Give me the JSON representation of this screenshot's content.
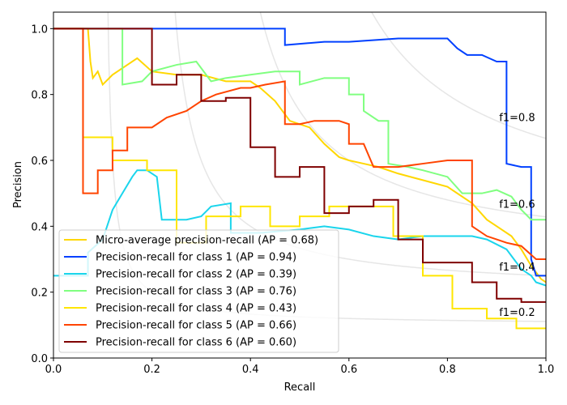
{
  "chart_data": {
    "type": "line",
    "title": "",
    "xlabel": "Recall",
    "ylabel": "Precision",
    "xlim": [
      0.0,
      1.0
    ],
    "ylim": [
      0.0,
      1.05
    ],
    "xticks": [
      0.0,
      0.2,
      0.4,
      0.6,
      0.8,
      1.0
    ],
    "yticks": [
      0.0,
      0.2,
      0.4,
      0.6,
      0.8,
      1.0
    ],
    "xtick_labels": [
      "0.0",
      "0.2",
      "0.4",
      "0.6",
      "0.8",
      "1.0"
    ],
    "ytick_labels": [
      "0.0",
      "0.2",
      "0.4",
      "0.6",
      "0.8",
      "1.0"
    ],
    "grid": false,
    "legend_position": "lower-left",
    "iso_f1": [
      {
        "f1": 0.2,
        "label": "f1=0.2",
        "label_at": [
          0.9,
          0.128
        ]
      },
      {
        "f1": 0.4,
        "label": "f1=0.4",
        "label_at": [
          0.9,
          0.266
        ]
      },
      {
        "f1": 0.6,
        "label": "f1=0.6",
        "label_at": [
          0.9,
          0.456
        ]
      },
      {
        "f1": 0.8,
        "label": "f1=0.8",
        "label_at": [
          0.9,
          0.719
        ]
      }
    ],
    "series": [
      {
        "name": "Micro-average precision-recall (AP = 0.68)",
        "color": "#ffd700",
        "points": [
          [
            0,
            1.0
          ],
          [
            0.07,
            1.0
          ],
          [
            0.075,
            0.9
          ],
          [
            0.08,
            0.85
          ],
          [
            0.09,
            0.87
          ],
          [
            0.1,
            0.83
          ],
          [
            0.12,
            0.86
          ],
          [
            0.15,
            0.89
          ],
          [
            0.17,
            0.91
          ],
          [
            0.2,
            0.87
          ],
          [
            0.25,
            0.86
          ],
          [
            0.3,
            0.86
          ],
          [
            0.35,
            0.84
          ],
          [
            0.4,
            0.84
          ],
          [
            0.42,
            0.82
          ],
          [
            0.45,
            0.78
          ],
          [
            0.48,
            0.72
          ],
          [
            0.5,
            0.71
          ],
          [
            0.52,
            0.7
          ],
          [
            0.55,
            0.65
          ],
          [
            0.58,
            0.61
          ],
          [
            0.6,
            0.6
          ],
          [
            0.63,
            0.59
          ],
          [
            0.66,
            0.58
          ],
          [
            0.7,
            0.56
          ],
          [
            0.75,
            0.54
          ],
          [
            0.8,
            0.52
          ],
          [
            0.85,
            0.47
          ],
          [
            0.88,
            0.42
          ],
          [
            0.9,
            0.4
          ],
          [
            0.93,
            0.37
          ],
          [
            0.95,
            0.33
          ],
          [
            0.97,
            0.28
          ],
          [
            0.99,
            0.24
          ],
          [
            1.0,
            0.23
          ]
        ]
      },
      {
        "name": "Precision-recall for class 1 (AP = 0.94)",
        "color": "#0040ff",
        "points": [
          [
            0,
            1.0
          ],
          [
            0.47,
            1.0
          ],
          [
            0.47,
            0.95
          ],
          [
            0.55,
            0.96
          ],
          [
            0.6,
            0.96
          ],
          [
            0.7,
            0.97
          ],
          [
            0.8,
            0.97
          ],
          [
            0.82,
            0.94
          ],
          [
            0.84,
            0.92
          ],
          [
            0.87,
            0.92
          ],
          [
            0.9,
            0.9
          ],
          [
            0.92,
            0.9
          ],
          [
            0.92,
            0.59
          ],
          [
            0.95,
            0.58
          ],
          [
            0.97,
            0.58
          ],
          [
            0.97,
            0.3
          ],
          [
            0.98,
            0.25
          ],
          [
            1.0,
            0.25
          ]
        ]
      },
      {
        "name": "Precision-recall for class 2 (AP = 0.39)",
        "color": "#1ad5ec",
        "points": [
          [
            0,
            0.25
          ],
          [
            0.07,
            0.25
          ],
          [
            0.07,
            0.32
          ],
          [
            0.1,
            0.36
          ],
          [
            0.12,
            0.45
          ],
          [
            0.14,
            0.5
          ],
          [
            0.16,
            0.55
          ],
          [
            0.17,
            0.57
          ],
          [
            0.19,
            0.57
          ],
          [
            0.21,
            0.55
          ],
          [
            0.22,
            0.42
          ],
          [
            0.27,
            0.42
          ],
          [
            0.3,
            0.43
          ],
          [
            0.32,
            0.46
          ],
          [
            0.36,
            0.47
          ],
          [
            0.36,
            0.38
          ],
          [
            0.42,
            0.38
          ],
          [
            0.5,
            0.39
          ],
          [
            0.55,
            0.4
          ],
          [
            0.6,
            0.39
          ],
          [
            0.65,
            0.37
          ],
          [
            0.7,
            0.36
          ],
          [
            0.75,
            0.37
          ],
          [
            0.85,
            0.37
          ],
          [
            0.88,
            0.36
          ],
          [
            0.92,
            0.33
          ],
          [
            0.95,
            0.27
          ],
          [
            0.97,
            0.25
          ],
          [
            0.98,
            0.23
          ],
          [
            1.0,
            0.22
          ]
        ]
      },
      {
        "name": "Precision-recall for class 3 (AP = 0.76)",
        "color": "#80ff80",
        "points": [
          [
            0,
            1.0
          ],
          [
            0.14,
            1.0
          ],
          [
            0.14,
            0.83
          ],
          [
            0.18,
            0.84
          ],
          [
            0.2,
            0.87
          ],
          [
            0.25,
            0.89
          ],
          [
            0.29,
            0.9
          ],
          [
            0.32,
            0.84
          ],
          [
            0.35,
            0.85
          ],
          [
            0.4,
            0.86
          ],
          [
            0.45,
            0.87
          ],
          [
            0.5,
            0.87
          ],
          [
            0.5,
            0.83
          ],
          [
            0.55,
            0.85
          ],
          [
            0.6,
            0.85
          ],
          [
            0.6,
            0.8
          ],
          [
            0.63,
            0.8
          ],
          [
            0.63,
            0.75
          ],
          [
            0.66,
            0.72
          ],
          [
            0.68,
            0.72
          ],
          [
            0.68,
            0.59
          ],
          [
            0.72,
            0.58
          ],
          [
            0.75,
            0.57
          ],
          [
            0.8,
            0.55
          ],
          [
            0.83,
            0.5
          ],
          [
            0.87,
            0.5
          ],
          [
            0.9,
            0.51
          ],
          [
            0.93,
            0.49
          ],
          [
            0.95,
            0.45
          ],
          [
            0.97,
            0.42
          ],
          [
            1.0,
            0.42
          ]
        ]
      },
      {
        "name": "Precision-recall for class 4 (AP = 0.43)",
        "color": "#ffe600",
        "points": [
          [
            0,
            1.0
          ],
          [
            0.06,
            1.0
          ],
          [
            0.06,
            0.67
          ],
          [
            0.12,
            0.67
          ],
          [
            0.12,
            0.6
          ],
          [
            0.19,
            0.6
          ],
          [
            0.19,
            0.57
          ],
          [
            0.25,
            0.57
          ],
          [
            0.25,
            0.35
          ],
          [
            0.31,
            0.35
          ],
          [
            0.31,
            0.43
          ],
          [
            0.38,
            0.43
          ],
          [
            0.38,
            0.46
          ],
          [
            0.44,
            0.46
          ],
          [
            0.44,
            0.4
          ],
          [
            0.5,
            0.4
          ],
          [
            0.5,
            0.43
          ],
          [
            0.56,
            0.43
          ],
          [
            0.56,
            0.46
          ],
          [
            0.69,
            0.46
          ],
          [
            0.69,
            0.37
          ],
          [
            0.75,
            0.37
          ],
          [
            0.75,
            0.25
          ],
          [
            0.81,
            0.25
          ],
          [
            0.81,
            0.15
          ],
          [
            0.88,
            0.15
          ],
          [
            0.88,
            0.12
          ],
          [
            0.94,
            0.12
          ],
          [
            0.94,
            0.09
          ],
          [
            1.0,
            0.09
          ]
        ]
      },
      {
        "name": "Precision-recall for class 5 (AP = 0.66)",
        "color": "#ff4400",
        "points": [
          [
            0,
            1.0
          ],
          [
            0.06,
            1.0
          ],
          [
            0.06,
            0.5
          ],
          [
            0.09,
            0.5
          ],
          [
            0.09,
            0.57
          ],
          [
            0.12,
            0.57
          ],
          [
            0.12,
            0.63
          ],
          [
            0.15,
            0.63
          ],
          [
            0.15,
            0.7
          ],
          [
            0.2,
            0.7
          ],
          [
            0.23,
            0.73
          ],
          [
            0.27,
            0.75
          ],
          [
            0.3,
            0.78
          ],
          [
            0.33,
            0.8
          ],
          [
            0.38,
            0.82
          ],
          [
            0.4,
            0.82
          ],
          [
            0.43,
            0.83
          ],
          [
            0.47,
            0.84
          ],
          [
            0.47,
            0.71
          ],
          [
            0.5,
            0.71
          ],
          [
            0.53,
            0.72
          ],
          [
            0.58,
            0.72
          ],
          [
            0.6,
            0.71
          ],
          [
            0.6,
            0.65
          ],
          [
            0.63,
            0.65
          ],
          [
            0.65,
            0.58
          ],
          [
            0.7,
            0.58
          ],
          [
            0.75,
            0.59
          ],
          [
            0.8,
            0.6
          ],
          [
            0.83,
            0.6
          ],
          [
            0.85,
            0.6
          ],
          [
            0.85,
            0.4
          ],
          [
            0.88,
            0.37
          ],
          [
            0.9,
            0.36
          ],
          [
            0.92,
            0.35
          ],
          [
            0.95,
            0.34
          ],
          [
            0.98,
            0.3
          ],
          [
            1.0,
            0.3
          ]
        ]
      },
      {
        "name": "Precision-recall for class 6 (AP = 0.60)",
        "color": "#7f0000",
        "points": [
          [
            0,
            1.0
          ],
          [
            0.2,
            1.0
          ],
          [
            0.2,
            0.83
          ],
          [
            0.25,
            0.83
          ],
          [
            0.25,
            0.86
          ],
          [
            0.3,
            0.86
          ],
          [
            0.3,
            0.78
          ],
          [
            0.35,
            0.78
          ],
          [
            0.35,
            0.79
          ],
          [
            0.4,
            0.79
          ],
          [
            0.4,
            0.64
          ],
          [
            0.45,
            0.64
          ],
          [
            0.45,
            0.55
          ],
          [
            0.5,
            0.55
          ],
          [
            0.5,
            0.58
          ],
          [
            0.55,
            0.58
          ],
          [
            0.55,
            0.44
          ],
          [
            0.6,
            0.44
          ],
          [
            0.6,
            0.46
          ],
          [
            0.65,
            0.46
          ],
          [
            0.65,
            0.48
          ],
          [
            0.7,
            0.48
          ],
          [
            0.7,
            0.36
          ],
          [
            0.75,
            0.36
          ],
          [
            0.75,
            0.29
          ],
          [
            0.85,
            0.29
          ],
          [
            0.85,
            0.23
          ],
          [
            0.9,
            0.23
          ],
          [
            0.9,
            0.18
          ],
          [
            0.95,
            0.18
          ],
          [
            0.95,
            0.17
          ],
          [
            1.0,
            0.17
          ]
        ]
      }
    ]
  }
}
